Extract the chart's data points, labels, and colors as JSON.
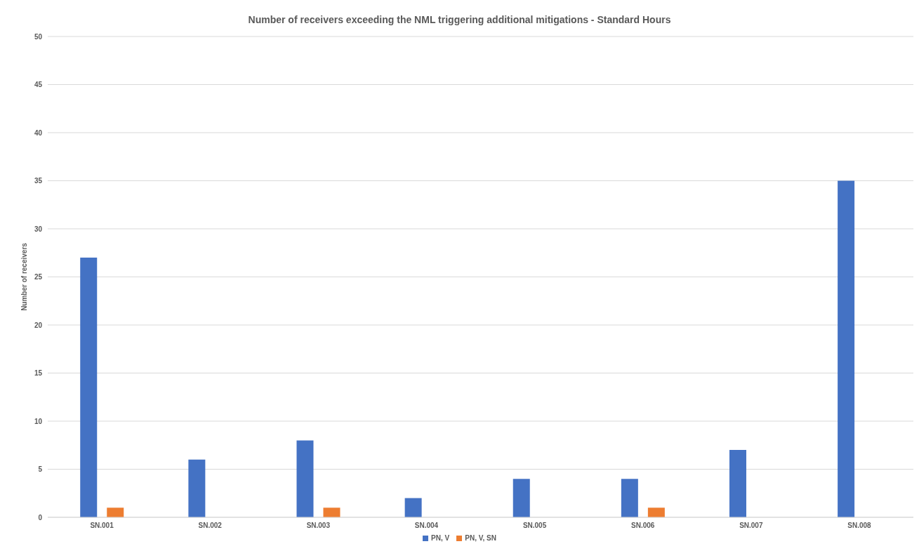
{
  "chart_data": {
    "type": "bar",
    "title": "Number of receivers exceeding the NML triggering additional mitigations - Standard Hours",
    "ylabel": "Number of receivers",
    "categories": [
      "SN.001",
      "SN.002",
      "SN.003",
      "SN.004",
      "SN.005",
      "SN.006",
      "SN.007",
      "SN.008"
    ],
    "series": [
      {
        "name": "PN, V",
        "color": "#4472c4",
        "values": [
          27,
          6,
          8,
          2,
          4,
          4,
          7,
          35
        ]
      },
      {
        "name": "PN, V, SN",
        "color": "#ed7d31",
        "values": [
          1,
          0,
          1,
          0,
          0,
          1,
          0,
          0
        ]
      }
    ],
    "ylim": [
      0,
      50
    ],
    "yticks": [
      0,
      5,
      10,
      15,
      20,
      25,
      30,
      35,
      40,
      45,
      50
    ],
    "grid": "y",
    "legend": "bottom"
  }
}
